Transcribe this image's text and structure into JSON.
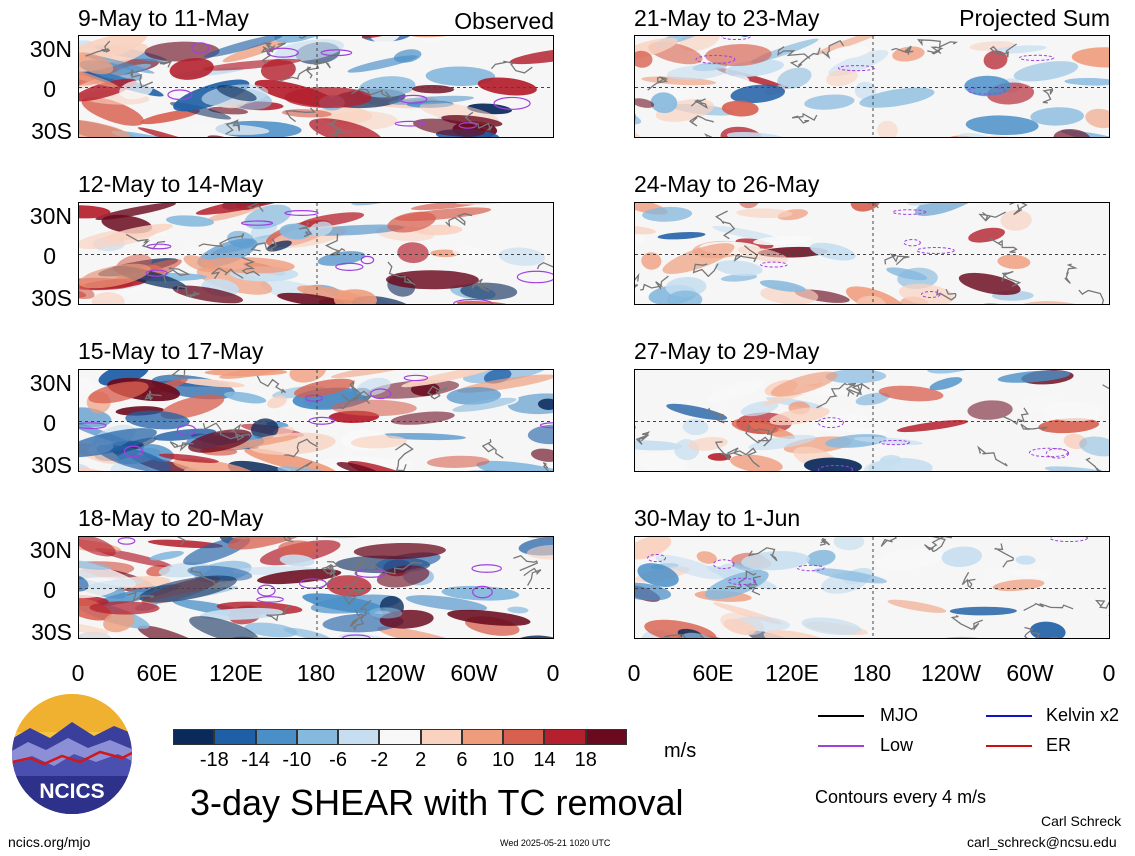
{
  "observed_label": "Observed",
  "projected_label": "Projected Sum",
  "panels_left": [
    "9-May to 11-May",
    "12-May to 14-May",
    "15-May to 17-May",
    "18-May to 20-May"
  ],
  "panels_right": [
    "21-May to 23-May",
    "24-May to 26-May",
    "27-May to 29-May",
    "30-May to 1-Jun"
  ],
  "lat_labels": [
    "30N",
    "0",
    "30S"
  ],
  "lon_labels": [
    "0",
    "60E",
    "120E",
    "180",
    "120W",
    "60W",
    "0"
  ],
  "colorbar": {
    "labels": [
      "-18",
      "-14",
      "-10",
      "-6",
      "-2",
      "2",
      "6",
      "10",
      "14",
      "18"
    ],
    "colors": [
      "#0a2a5a",
      "#1f5fa6",
      "#4a8fc8",
      "#86b9de",
      "#c6def0",
      "#f8f8f8",
      "#f9d2c0",
      "#ef9c7c",
      "#d8604f",
      "#b4202d",
      "#6a0a1e"
    ],
    "units": "m/s"
  },
  "legend": {
    "mjo": "MJO",
    "kelvin": "Kelvin x2",
    "low": "Low",
    "er": "ER",
    "colors": {
      "mjo": "#000000",
      "kelvin": "#1010cc",
      "low": "#a040e0",
      "er": "#cc1010"
    },
    "contours_note": "Contours every 4 m/s"
  },
  "main_title": "3-day SHEAR with TC removal",
  "logo_text": "NCICS",
  "footer": {
    "url": "ncics.org/mjo",
    "timestamp": "Wed 2025-05-21 1020 UTC",
    "author": "Carl Schreck",
    "email": "carl_schreck@ncsu.edu"
  }
}
